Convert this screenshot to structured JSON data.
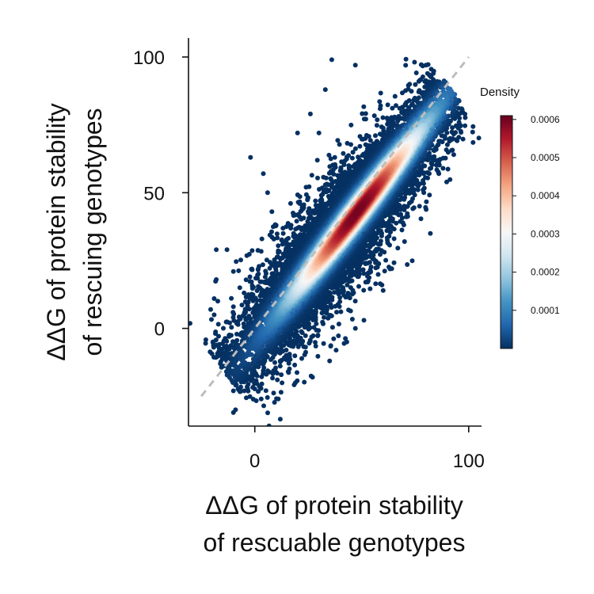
{
  "chart_data": {
    "type": "scatter",
    "title": "",
    "xlabel": [
      "ΔΔG of protein stability",
      "of rescuable genotypes"
    ],
    "ylabel": [
      "ΔΔG of protein stability",
      "of rescuing genotypes"
    ],
    "xlim": [
      -31,
      106
    ],
    "ylim": [
      -36,
      107
    ],
    "x_ticks": [
      0,
      100
    ],
    "y_ticks": [
      0,
      50,
      100
    ],
    "grid": false,
    "reference_line": {
      "style": "dashed",
      "color": "#bdbdbd",
      "from": [
        -25,
        -25
      ],
      "to": [
        100,
        100
      ]
    },
    "point_distribution": {
      "description": "dense cloud along diagonal, colored by kernel density",
      "center": [
        40,
        34
      ],
      "core_center": [
        50,
        52
      ],
      "count_approx": 12000
    },
    "outlier_points": [
      [
        36,
        99
      ],
      [
        47,
        97
      ],
      [
        33,
        88
      ],
      [
        80,
        97
      ],
      [
        82,
        93
      ],
      [
        -18,
        29
      ],
      [
        -13,
        29
      ],
      [
        -18,
        18
      ],
      [
        -10,
        21
      ],
      [
        -19,
        11
      ],
      [
        -19,
        5
      ],
      [
        -10,
        8
      ],
      [
        -12,
        -3
      ],
      [
        -7,
        15
      ],
      [
        -2,
        63
      ],
      [
        8,
        43
      ],
      [
        10,
        38
      ],
      [
        6,
        50
      ],
      [
        13,
        31
      ],
      [
        17,
        38
      ],
      [
        21,
        46
      ],
      [
        26,
        79
      ],
      [
        -10,
        -23
      ],
      [
        -5,
        -23
      ],
      [
        3,
        -26
      ],
      [
        -9,
        -30
      ],
      [
        -10,
        -31
      ],
      [
        11,
        -26
      ],
      [
        91,
        87
      ],
      [
        93,
        81
      ],
      [
        91,
        69
      ],
      [
        93,
        64
      ],
      [
        88,
        59
      ],
      [
        89,
        70
      ],
      [
        79,
        50
      ],
      [
        77,
        45
      ],
      [
        70,
        32
      ],
      [
        64,
        22
      ],
      [
        60,
        14
      ],
      [
        51,
        3
      ],
      [
        47,
        0
      ],
      [
        43,
        -5
      ],
      [
        38,
        -8
      ],
      [
        35,
        -12
      ],
      [
        19,
        -20
      ],
      [
        27,
        -18
      ],
      [
        4,
        57
      ],
      [
        20,
        72
      ],
      [
        16,
        28
      ],
      [
        30,
        72
      ]
    ],
    "colorbar": {
      "title": "Density",
      "range": [
        0,
        0.00061
      ],
      "ticks": [
        0.0001,
        0.0002,
        0.0003,
        0.0004,
        0.0005,
        0.0006
      ],
      "tick_labels": [
        "0.0001",
        "0.0002",
        "0.0003",
        "0.0004",
        "0.0005",
        "0.0006"
      ],
      "colormap": "RdBu_r",
      "colors": [
        "#053061",
        "#2166ac",
        "#4393c3",
        "#92c5de",
        "#d1e5f0",
        "#f7f7f7",
        "#fddbc7",
        "#f4a582",
        "#d6604d",
        "#b2182b",
        "#67001f"
      ]
    }
  }
}
